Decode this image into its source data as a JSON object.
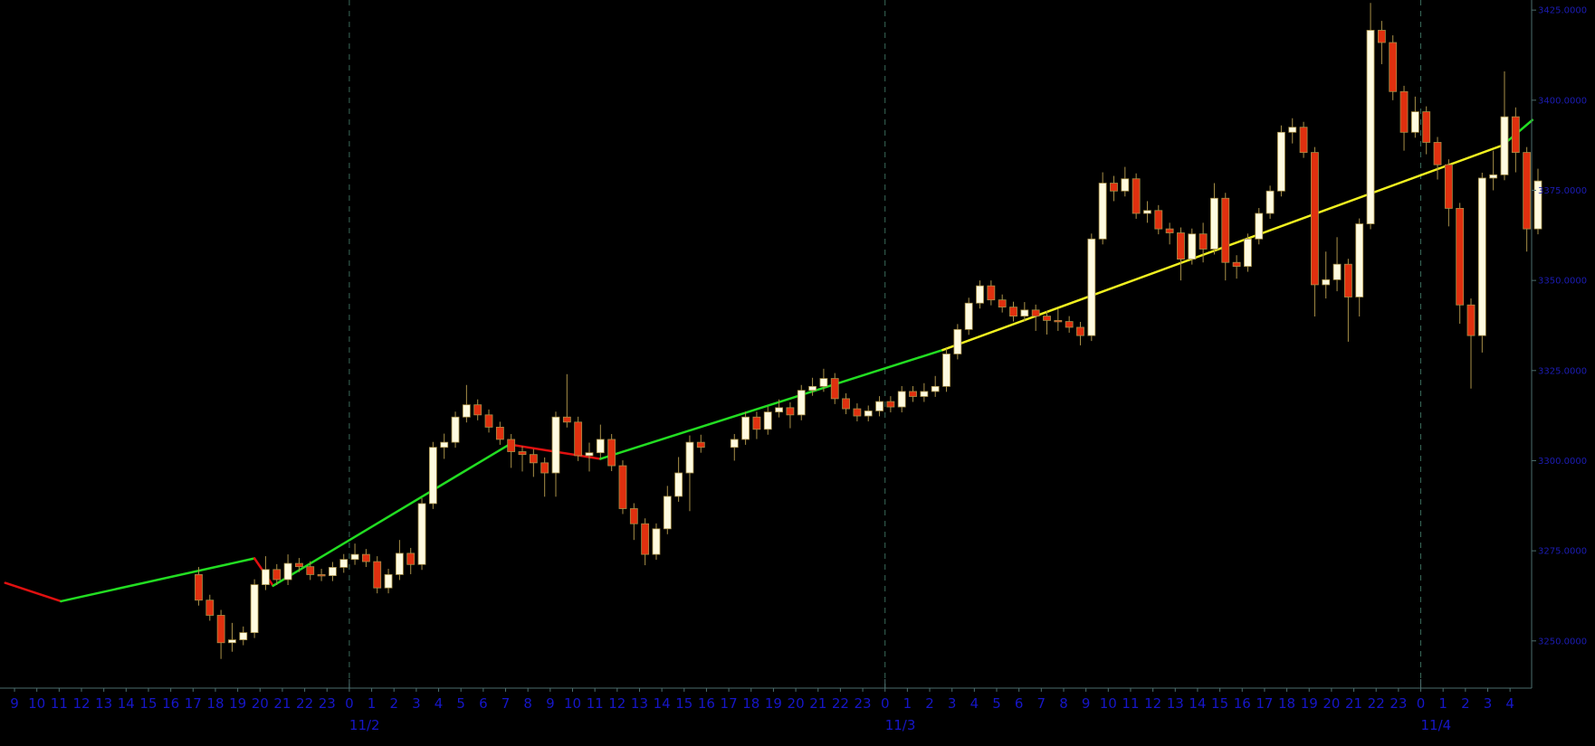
{
  "chart_data": {
    "type": "candlestick",
    "title": "",
    "xlabel": "",
    "ylabel": "",
    "xlim": [
      "11/1 08:21",
      "11/4 04:58"
    ],
    "ylim": [
      3236.9,
      3427.8
    ],
    "grid": "vertical dashed lines at day boundaries",
    "colors": {
      "background": "#000000",
      "bull_body": "#fffbe0",
      "bear_body": "#e0300f",
      "wick": "#a89048",
      "axis_text": "#1616c8",
      "axis_line": "#4c6e6e",
      "zigzag_up": "#22dd22",
      "zigzag_down": "#e01010",
      "zigzag_last": "#f0f020"
    },
    "y_ticks": [
      "3250.0000",
      "3275.0000",
      "3300.0000",
      "3325.0000",
      "3350.0000",
      "3375.0000",
      "3400.0000",
      "3425.0000"
    ],
    "x_ticks": {
      "start": "11/1 09:00",
      "step_hours": 1,
      "labels": [
        "9",
        "10",
        "11",
        "12",
        "13",
        "14",
        "15",
        "16",
        "17",
        "18",
        "19",
        "20",
        "21",
        "22",
        "23",
        "0",
        "1",
        "2",
        "3",
        "4",
        "5",
        "6",
        "7",
        "8",
        "9",
        "10",
        "11",
        "12",
        "13",
        "14",
        "15",
        "16",
        "17",
        "18",
        "19",
        "20",
        "21",
        "22",
        "23",
        "0",
        "1",
        "2",
        "3",
        "4",
        "5",
        "6",
        "7",
        "8",
        "9",
        "10",
        "11",
        "12",
        "13",
        "14",
        "15",
        "16",
        "17",
        "18",
        "19",
        "20",
        "21",
        "22",
        "23",
        "0",
        "1",
        "2",
        "3",
        "4"
      ]
    },
    "date_labels": [
      {
        "time": "11/2 00:00",
        "label": "11/2"
      },
      {
        "time": "11/3 00:00",
        "label": "11/3"
      },
      {
        "time": "11/4 00:00",
        "label": "11/4"
      }
    ],
    "candle_fields": [
      "time",
      "open",
      "high",
      "low",
      "close"
    ],
    "candles": [
      [
        "11/1 17:00",
        3268.4,
        3270.5,
        3259.8,
        3261.3
      ],
      [
        "11/1 17:30",
        3261.3,
        3262.8,
        3255.6,
        3257.1
      ],
      [
        "11/1 18:00",
        3257.1,
        3258.6,
        3245.0,
        3249.5
      ],
      [
        "11/1 18:30",
        3249.5,
        3255.0,
        3247.0,
        3250.3
      ],
      [
        "11/1 19:00",
        3250.3,
        3254.0,
        3248.8,
        3252.3
      ],
      [
        "11/1 19:30",
        3252.3,
        3267.1,
        3250.8,
        3265.6
      ],
      [
        "11/1 20:00",
        3265.6,
        3273.5,
        3264.1,
        3269.8
      ],
      [
        "11/1 20:30",
        3269.8,
        3271.3,
        3265.5,
        3267.0
      ],
      [
        "11/1 21:00",
        3267.0,
        3274.0,
        3265.5,
        3271.5
      ],
      [
        "11/1 21:30",
        3271.5,
        3273.0,
        3269.1,
        3270.6
      ],
      [
        "11/1 22:00",
        3270.6,
        3272.1,
        3266.9,
        3268.4
      ],
      [
        "11/1 22:30",
        3268.4,
        3270.0,
        3266.6,
        3268.1
      ],
      [
        "11/1 23:00",
        3268.1,
        3271.9,
        3266.6,
        3270.4
      ],
      [
        "11/1 23:30",
        3270.4,
        3274.1,
        3268.9,
        3272.6
      ],
      [
        "11/2 00:00",
        3272.6,
        3277.0,
        3271.1,
        3274.0
      ],
      [
        "11/2 00:30",
        3274.0,
        3275.5,
        3270.5,
        3272.0
      ],
      [
        "11/2 01:00",
        3272.0,
        3273.5,
        3263.2,
        3264.7
      ],
      [
        "11/2 01:30",
        3264.7,
        3270.0,
        3263.2,
        3268.4
      ],
      [
        "11/2 02:00",
        3268.4,
        3278.0,
        3266.9,
        3274.3
      ],
      [
        "11/2 02:30",
        3274.3,
        3275.8,
        3268.5,
        3271.2
      ],
      [
        "11/2 03:00",
        3271.2,
        3289.6,
        3269.7,
        3288.1
      ],
      [
        "11/2 03:30",
        3288.1,
        3305.2,
        3286.6,
        3303.7
      ],
      [
        "11/2 04:00",
        3303.7,
        3307.5,
        3300.5,
        3305.1
      ],
      [
        "11/2 04:30",
        3305.1,
        3313.6,
        3303.6,
        3312.1
      ],
      [
        "11/2 05:00",
        3312.1,
        3321.0,
        3310.6,
        3315.5
      ],
      [
        "11/2 05:30",
        3315.5,
        3317.0,
        3311.2,
        3312.7
      ],
      [
        "11/2 06:00",
        3312.7,
        3314.2,
        3307.8,
        3309.3
      ],
      [
        "11/2 06:30",
        3309.3,
        3310.8,
        3304.4,
        3305.9
      ],
      [
        "11/2 07:00",
        3305.9,
        3307.4,
        3298.0,
        3302.5
      ],
      [
        "11/2 07:30",
        3302.5,
        3304.0,
        3297.0,
        3301.7
      ],
      [
        "11/2 08:00",
        3301.7,
        3303.2,
        3295.5,
        3299.4
      ],
      [
        "11/2 08:30",
        3299.4,
        3300.9,
        3290.0,
        3296.6
      ],
      [
        "11/2 09:00",
        3296.6,
        3313.6,
        3290.0,
        3312.1
      ],
      [
        "11/2 09:30",
        3312.1,
        3324.0,
        3309.2,
        3310.7
      ],
      [
        "11/2 10:00",
        3310.7,
        3312.2,
        3299.9,
        3301.4
      ],
      [
        "11/2 10:30",
        3301.4,
        3305.0,
        3297.0,
        3302.2
      ],
      [
        "11/2 11:00",
        3302.2,
        3310.0,
        3300.7,
        3305.9
      ],
      [
        "11/2 11:30",
        3305.9,
        3307.4,
        3297.1,
        3298.6
      ],
      [
        "11/2 12:00",
        3298.6,
        3300.1,
        3285.2,
        3286.7
      ],
      [
        "11/2 12:30",
        3286.7,
        3288.2,
        3278.0,
        3282.5
      ],
      [
        "11/2 13:00",
        3282.5,
        3284.0,
        3271.0,
        3274.0
      ],
      [
        "11/2 13:30",
        3274.0,
        3282.6,
        3272.5,
        3281.1
      ],
      [
        "11/2 14:00",
        3281.1,
        3293.0,
        3279.6,
        3290.1
      ],
      [
        "11/2 14:30",
        3290.1,
        3301.0,
        3288.6,
        3296.6
      ],
      [
        "11/2 15:00",
        3296.6,
        3307.0,
        3286.0,
        3305.1
      ],
      [
        "11/2 15:30",
        3305.1,
        3307.2,
        3302.2,
        3303.7
      ],
      [
        "11/2 17:00",
        3303.7,
        3307.4,
        3300.0,
        3305.9
      ],
      [
        "11/2 17:30",
        3305.9,
        3313.6,
        3304.4,
        3312.1
      ],
      [
        "11/2 18:00",
        3312.1,
        3313.6,
        3306.0,
        3308.7
      ],
      [
        "11/2 18:30",
        3308.7,
        3315.0,
        3307.2,
        3313.5
      ],
      [
        "11/2 19:00",
        3313.5,
        3317.0,
        3312.0,
        3314.7
      ],
      [
        "11/2 19:30",
        3314.7,
        3316.2,
        3309.0,
        3312.7
      ],
      [
        "11/2 20:00",
        3312.7,
        3321.0,
        3311.2,
        3319.5
      ],
      [
        "11/2 20:30",
        3319.5,
        3323.0,
        3318.0,
        3320.6
      ],
      [
        "11/2 21:00",
        3320.6,
        3325.5,
        3319.1,
        3322.8
      ],
      [
        "11/2 21:30",
        3322.8,
        3324.3,
        3315.7,
        3317.2
      ],
      [
        "11/2 22:00",
        3317.2,
        3318.7,
        3312.9,
        3314.4
      ],
      [
        "11/2 22:30",
        3314.4,
        3315.9,
        3310.9,
        3312.4
      ],
      [
        "11/2 23:00",
        3312.4,
        3315.3,
        3310.9,
        3313.8
      ],
      [
        "11/2 23:30",
        3313.8,
        3317.9,
        3312.3,
        3316.4
      ],
      [
        "11/3 00:00",
        3316.4,
        3317.9,
        3313.4,
        3314.9
      ],
      [
        "11/3 00:30",
        3314.9,
        3320.7,
        3313.4,
        3319.2
      ],
      [
        "11/3 01:00",
        3319.2,
        3320.7,
        3316.3,
        3317.8
      ],
      [
        "11/3 01:30",
        3317.8,
        3321.5,
        3316.3,
        3319.2
      ],
      [
        "11/3 02:00",
        3319.2,
        3323.5,
        3317.7,
        3320.6
      ],
      [
        "11/3 02:30",
        3320.6,
        3331.1,
        3319.1,
        3329.6
      ],
      [
        "11/3 03:00",
        3329.6,
        3337.9,
        3328.1,
        3336.4
      ],
      [
        "11/3 03:30",
        3336.4,
        3345.2,
        3334.9,
        3343.7
      ],
      [
        "11/3 04:00",
        3343.7,
        3350.0,
        3342.2,
        3348.5
      ],
      [
        "11/3 04:30",
        3348.5,
        3350.0,
        3343.1,
        3344.6
      ],
      [
        "11/3 05:00",
        3344.6,
        3346.1,
        3341.1,
        3342.6
      ],
      [
        "11/3 05:30",
        3342.6,
        3344.1,
        3338.6,
        3340.1
      ],
      [
        "11/3 06:00",
        3340.1,
        3344.0,
        3338.6,
        3341.8
      ],
      [
        "11/3 06:30",
        3341.8,
        3343.3,
        3336.0,
        3340.1
      ],
      [
        "11/3 07:00",
        3340.1,
        3341.6,
        3335.0,
        3338.9
      ],
      [
        "11/3 07:30",
        3338.9,
        3342.0,
        3336.0,
        3338.6
      ],
      [
        "11/3 08:00",
        3338.6,
        3340.1,
        3335.5,
        3337.0
      ],
      [
        "11/3 08:30",
        3337.0,
        3338.5,
        3332.0,
        3334.7
      ],
      [
        "11/3 09:00",
        3334.7,
        3363.0,
        3333.2,
        3361.5
      ],
      [
        "11/3 09:30",
        3361.5,
        3380.0,
        3360.0,
        3377.0
      ],
      [
        "11/3 10:00",
        3377.0,
        3379.0,
        3372.0,
        3374.8
      ],
      [
        "11/3 10:30",
        3374.8,
        3381.5,
        3373.3,
        3378.2
      ],
      [
        "11/3 11:00",
        3378.2,
        3379.7,
        3367.1,
        3368.6
      ],
      [
        "11/3 11:30",
        3368.6,
        3372.0,
        3366.0,
        3369.4
      ],
      [
        "11/3 12:00",
        3369.4,
        3370.9,
        3362.8,
        3364.3
      ],
      [
        "11/3 12:30",
        3364.3,
        3366.0,
        3360.0,
        3363.2
      ],
      [
        "11/3 13:00",
        3363.2,
        3364.7,
        3350.0,
        3355.9
      ],
      [
        "11/3 13:30",
        3355.9,
        3364.4,
        3354.4,
        3362.9
      ],
      [
        "11/3 14:00",
        3362.9,
        3366.0,
        3355.0,
        3358.7
      ],
      [
        "11/3 14:30",
        3358.7,
        3377.0,
        3357.2,
        3372.8
      ],
      [
        "11/3 15:00",
        3372.8,
        3374.3,
        3350.0,
        3355.0
      ],
      [
        "11/3 15:30",
        3355.0,
        3357.0,
        3350.5,
        3353.9
      ],
      [
        "11/3 16:00",
        3353.9,
        3363.0,
        3352.4,
        3361.5
      ],
      [
        "11/3 16:30",
        3361.5,
        3370.1,
        3360.0,
        3368.6
      ],
      [
        "11/3 17:00",
        3368.6,
        3376.3,
        3367.1,
        3374.8
      ],
      [
        "11/3 17:30",
        3374.8,
        3393.0,
        3373.3,
        3391.1
      ],
      [
        "11/3 18:00",
        3391.1,
        3395.0,
        3388.0,
        3392.5
      ],
      [
        "11/3 18:30",
        3392.5,
        3394.0,
        3384.0,
        3385.5
      ],
      [
        "11/3 19:00",
        3385.5,
        3387.0,
        3340.0,
        3348.8
      ],
      [
        "11/3 19:30",
        3348.8,
        3358.0,
        3345.0,
        3350.2
      ],
      [
        "11/3 20:00",
        3350.2,
        3362.0,
        3347.0,
        3354.5
      ],
      [
        "11/3 20:30",
        3354.5,
        3356.0,
        3333.0,
        3345.4
      ],
      [
        "11/3 21:00",
        3345.4,
        3367.2,
        3340.0,
        3365.7
      ],
      [
        "11/3 21:30",
        3365.7,
        3427.0,
        3364.2,
        3419.4
      ],
      [
        "11/3 22:00",
        3419.4,
        3422.0,
        3410.0,
        3416.0
      ],
      [
        "11/3 22:30",
        3416.0,
        3418.0,
        3400.0,
        3402.4
      ],
      [
        "11/3 23:00",
        3402.4,
        3404.0,
        3386.0,
        3391.1
      ],
      [
        "11/3 23:30",
        3391.1,
        3401.0,
        3389.6,
        3396.8
      ],
      [
        "11/4 00:00",
        3396.8,
        3398.3,
        3385.0,
        3388.3
      ],
      [
        "11/4 00:30",
        3388.3,
        3389.8,
        3378.0,
        3382.1
      ],
      [
        "11/4 01:00",
        3382.1,
        3383.6,
        3365.0,
        3370.0
      ],
      [
        "11/4 01:30",
        3370.0,
        3371.5,
        3338.0,
        3343.2
      ],
      [
        "11/4 02:00",
        3343.2,
        3345.0,
        3320.0,
        3334.7
      ],
      [
        "11/4 02:30",
        3334.7,
        3379.9,
        3330.0,
        3378.4
      ],
      [
        "11/4 03:00",
        3378.4,
        3386.0,
        3375.0,
        3379.3
      ],
      [
        "11/4 03:30",
        3379.3,
        3408.0,
        3377.8,
        3395.4
      ],
      [
        "11/4 04:00",
        3395.4,
        3398.0,
        3380.0,
        3385.5
      ],
      [
        "11/4 04:30",
        3385.5,
        3387.0,
        3358.0,
        3364.3
      ],
      [
        "11/4 05:00",
        3364.3,
        3381.0,
        3362.8,
        3377.6
      ]
    ],
    "zigzag": [
      {
        "from": [
          "11/1 08:35",
          3266.1
        ],
        "to": [
          "11/1 11:05",
          3261.0
        ],
        "direction": "down"
      },
      {
        "from": [
          "11/1 11:05",
          3261.0
        ],
        "to": [
          "11/1 19:45",
          3272.9
        ],
        "direction": "up"
      },
      {
        "from": [
          "11/1 19:45",
          3272.9
        ],
        "to": [
          "11/1 20:35",
          3265.3
        ],
        "direction": "down"
      },
      {
        "from": [
          "11/1 20:35",
          3265.3
        ],
        "to": [
          "11/2 07:10",
          3304.5
        ],
        "direction": "up"
      },
      {
        "from": [
          "11/2 07:10",
          3304.5
        ],
        "to": [
          "11/2 11:15",
          3300.5
        ],
        "direction": "down"
      },
      {
        "from": [
          "11/2 11:15",
          3300.5
        ],
        "to": [
          "11/3 02:35",
          3330.7
        ],
        "direction": "up"
      },
      {
        "from": [
          "11/3 02:35",
          3330.7
        ],
        "to": [
          "11/4 03:40",
          3387.5
        ],
        "direction": "last"
      },
      {
        "from": [
          "11/4 03:40",
          3387.5
        ],
        "to": [
          "11/4 05:00",
          3394.5
        ],
        "direction": "up"
      }
    ]
  }
}
